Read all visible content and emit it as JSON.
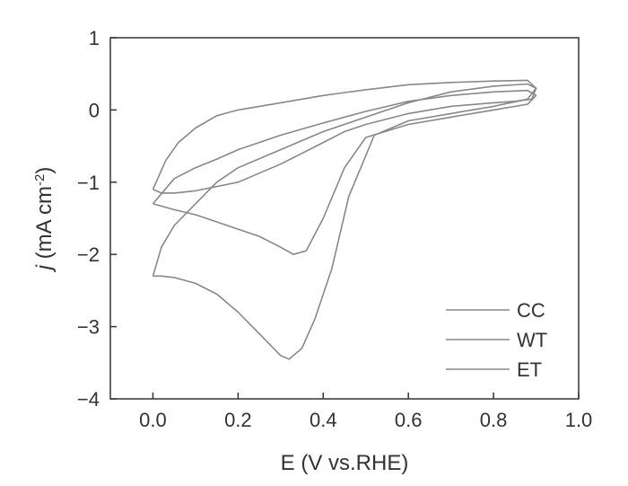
{
  "chart_data": {
    "type": "line",
    "xlabel": "E (V vs.RHE)",
    "ylabel": {
      "italic": "j",
      "main": " (mA cm",
      "sup": "-2",
      "end": ")"
    },
    "xlim": [
      -0.1,
      1.0
    ],
    "ylim": [
      -4,
      1
    ],
    "xticks": [
      "0.0",
      "0.2",
      "0.4",
      "0.6",
      "0.8",
      "1.0"
    ],
    "yticks": [
      "1",
      "0",
      "−1",
      "−2",
      "−3",
      "−4"
    ],
    "xtick_values": [
      0.0,
      0.2,
      0.4,
      0.6,
      0.8,
      1.0
    ],
    "ytick_values": [
      1,
      0,
      -1,
      -2,
      -3,
      -4
    ],
    "grid": false,
    "legend_position": "bottom-right",
    "colors": {
      "axis": "#333333",
      "line": "#888888"
    },
    "series": [
      {
        "name": "CC",
        "x": [
          0.0,
          0.03,
          0.06,
          0.1,
          0.15,
          0.2,
          0.3,
          0.4,
          0.5,
          0.6,
          0.7,
          0.8,
          0.88,
          0.9,
          0.89,
          0.85,
          0.8,
          0.7,
          0.6,
          0.5,
          0.45,
          0.4,
          0.3,
          0.2,
          0.1,
          0.05,
          0.02,
          0.0
        ],
        "y": [
          -1.1,
          -0.7,
          -0.45,
          -0.25,
          -0.08,
          0.0,
          0.1,
          0.2,
          0.28,
          0.35,
          0.38,
          0.4,
          0.41,
          0.3,
          0.15,
          0.12,
          0.1,
          0.05,
          -0.05,
          -0.2,
          -0.3,
          -0.45,
          -0.75,
          -1.0,
          -1.12,
          -1.15,
          -1.15,
          -1.1
        ]
      },
      {
        "name": "WT",
        "x": [
          0.0,
          0.05,
          0.1,
          0.15,
          0.2,
          0.3,
          0.4,
          0.5,
          0.6,
          0.7,
          0.8,
          0.88,
          0.9,
          0.88,
          0.8,
          0.7,
          0.6,
          0.5,
          0.45,
          0.4,
          0.36,
          0.33,
          0.3,
          0.25,
          0.2,
          0.15,
          0.1,
          0.05,
          0.0
        ],
        "y": [
          -1.3,
          -0.95,
          -0.8,
          -0.68,
          -0.55,
          -0.35,
          -0.18,
          -0.02,
          0.12,
          0.2,
          0.25,
          0.27,
          0.2,
          0.08,
          0.0,
          -0.1,
          -0.2,
          -0.38,
          -0.8,
          -1.5,
          -1.95,
          -2.0,
          -1.9,
          -1.75,
          -1.65,
          -1.55,
          -1.45,
          -1.38,
          -1.3
        ]
      },
      {
        "name": "ET",
        "x": [
          0.0,
          0.02,
          0.05,
          0.1,
          0.15,
          0.2,
          0.3,
          0.4,
          0.5,
          0.6,
          0.7,
          0.8,
          0.88,
          0.9,
          0.88,
          0.8,
          0.7,
          0.6,
          0.52,
          0.46,
          0.42,
          0.38,
          0.35,
          0.32,
          0.3,
          0.25,
          0.2,
          0.15,
          0.1,
          0.05,
          0.02,
          0.0
        ],
        "y": [
          -2.3,
          -1.9,
          -1.6,
          -1.3,
          -1.0,
          -0.8,
          -0.55,
          -0.3,
          -0.1,
          0.1,
          0.25,
          0.33,
          0.36,
          0.3,
          0.15,
          0.05,
          -0.05,
          -0.15,
          -0.35,
          -1.2,
          -2.2,
          -2.9,
          -3.3,
          -3.45,
          -3.4,
          -3.1,
          -2.8,
          -2.55,
          -2.4,
          -2.32,
          -2.3,
          -2.3
        ]
      }
    ]
  }
}
